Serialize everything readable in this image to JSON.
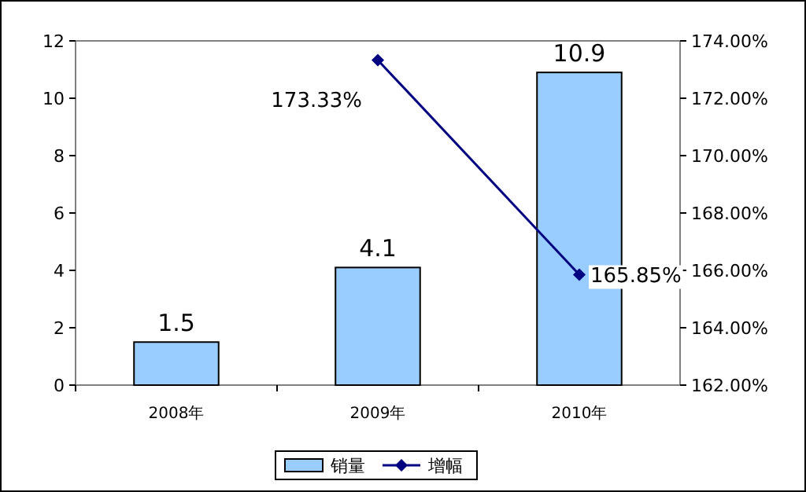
{
  "chart_data": {
    "type": "bar",
    "categories": [
      "2008年",
      "2009年",
      "2010年"
    ],
    "series": [
      {
        "name": "销量",
        "color": "#99ccff",
        "values": [
          1.5,
          4.1,
          10.9
        ],
        "value_labels": [
          "1.5",
          "4.1",
          "10.9"
        ]
      },
      {
        "name": "增幅",
        "type": "line",
        "axis": "y2",
        "color": "#000080",
        "marker": "diamond",
        "values": [
          null,
          173.33,
          165.85
        ],
        "value_labels": [
          null,
          "173.33%",
          "165.85%"
        ]
      }
    ],
    "ylim": [
      0,
      12
    ],
    "yticks": [
      0,
      2,
      4,
      6,
      8,
      10,
      12
    ],
    "y2lim": [
      162,
      174
    ],
    "y2ticks": [
      {
        "value": 162,
        "label": "162.00%"
      },
      {
        "value": 164,
        "label": "164.00%"
      },
      {
        "value": 166,
        "label": "166.00%"
      },
      {
        "value": 168,
        "label": "168.00%"
      },
      {
        "value": 170,
        "label": "170.00%"
      },
      {
        "value": 172,
        "label": "172.00%"
      },
      {
        "value": 174,
        "label": "174.00%"
      }
    ],
    "legend": "bottom"
  }
}
